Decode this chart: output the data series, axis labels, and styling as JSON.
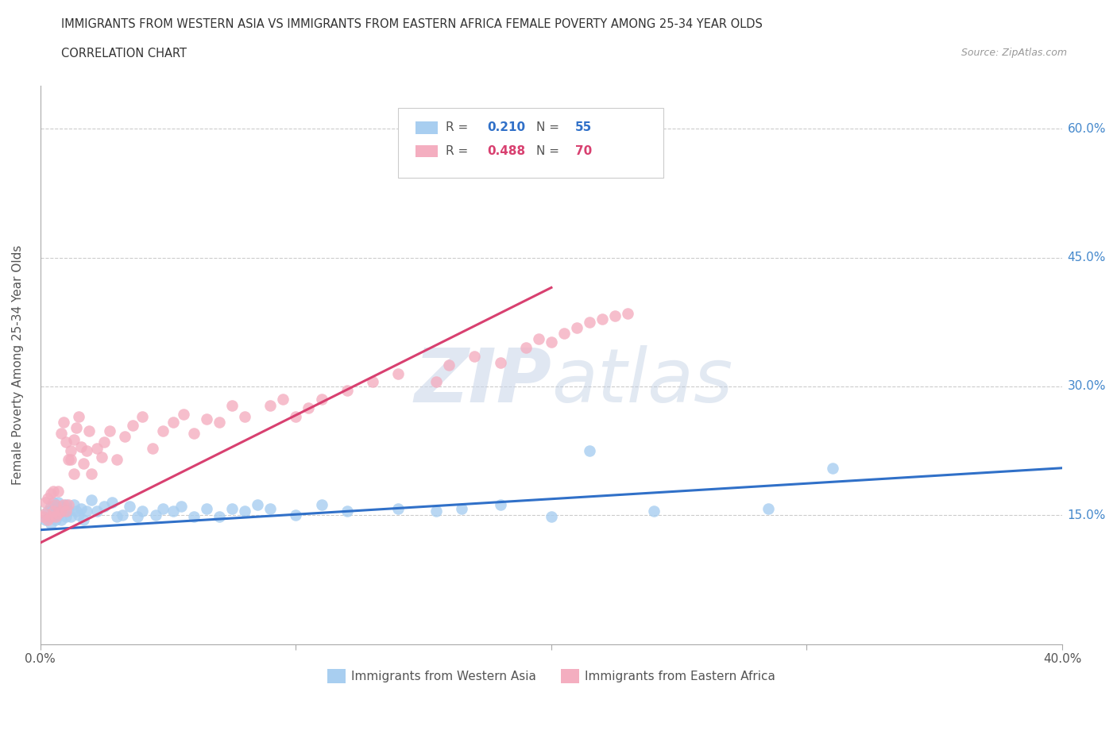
{
  "title_line1": "IMMIGRANTS FROM WESTERN ASIA VS IMMIGRANTS FROM EASTERN AFRICA FEMALE POVERTY AMONG 25-34 YEAR OLDS",
  "title_line2": "CORRELATION CHART",
  "source_text": "Source: ZipAtlas.com",
  "ylabel": "Female Poverty Among 25-34 Year Olds",
  "xlim": [
    0.0,
    0.4
  ],
  "ylim": [
    0.0,
    0.65
  ],
  "xtick_vals": [
    0.0,
    0.1,
    0.2,
    0.3,
    0.4
  ],
  "xtick_labels": [
    "0.0%",
    "",
    "",
    "",
    "40.0%"
  ],
  "ytick_vals": [
    0.0,
    0.15,
    0.3,
    0.45,
    0.6
  ],
  "ytick_labels": [
    "",
    "15.0%",
    "30.0%",
    "45.0%",
    "60.0%"
  ],
  "hgrid_vals": [
    0.15,
    0.3,
    0.45,
    0.6
  ],
  "blue_R": 0.21,
  "blue_N": 55,
  "pink_R": 0.488,
  "pink_N": 70,
  "blue_color": "#a8cef0",
  "pink_color": "#f4aec0",
  "blue_line_color": "#3070c8",
  "pink_line_color": "#d84070",
  "watermark_zip": "ZIP",
  "watermark_atlas": "atlas",
  "legend_label_blue": "Immigrants from Western Asia",
  "legend_label_pink": "Immigrants from Eastern Africa",
  "blue_scatter_x": [
    0.002,
    0.003,
    0.004,
    0.004,
    0.005,
    0.005,
    0.006,
    0.006,
    0.007,
    0.007,
    0.008,
    0.008,
    0.009,
    0.01,
    0.01,
    0.011,
    0.012,
    0.013,
    0.014,
    0.015,
    0.016,
    0.017,
    0.018,
    0.02,
    0.022,
    0.025,
    0.028,
    0.03,
    0.032,
    0.035,
    0.038,
    0.04,
    0.045,
    0.048,
    0.052,
    0.055,
    0.06,
    0.065,
    0.07,
    0.075,
    0.08,
    0.085,
    0.09,
    0.1,
    0.11,
    0.12,
    0.14,
    0.155,
    0.165,
    0.18,
    0.2,
    0.215,
    0.24,
    0.285,
    0.31
  ],
  "blue_scatter_y": [
    0.145,
    0.155,
    0.14,
    0.16,
    0.15,
    0.165,
    0.145,
    0.16,
    0.15,
    0.165,
    0.145,
    0.16,
    0.155,
    0.148,
    0.162,
    0.155,
    0.148,
    0.162,
    0.155,
    0.15,
    0.158,
    0.145,
    0.155,
    0.168,
    0.155,
    0.16,
    0.165,
    0.148,
    0.15,
    0.16,
    0.148,
    0.155,
    0.15,
    0.158,
    0.155,
    0.16,
    0.148,
    0.158,
    0.148,
    0.158,
    0.155,
    0.162,
    0.158,
    0.15,
    0.162,
    0.155,
    0.158,
    0.155,
    0.158,
    0.162,
    0.148,
    0.225,
    0.155,
    0.158,
    0.205
  ],
  "pink_scatter_x": [
    0.001,
    0.002,
    0.002,
    0.003,
    0.003,
    0.004,
    0.004,
    0.005,
    0.005,
    0.006,
    0.006,
    0.007,
    0.007,
    0.008,
    0.008,
    0.009,
    0.009,
    0.01,
    0.01,
    0.011,
    0.011,
    0.012,
    0.012,
    0.013,
    0.013,
    0.014,
    0.015,
    0.016,
    0.017,
    0.018,
    0.019,
    0.02,
    0.022,
    0.024,
    0.025,
    0.027,
    0.03,
    0.033,
    0.036,
    0.04,
    0.044,
    0.048,
    0.052,
    0.056,
    0.06,
    0.065,
    0.07,
    0.075,
    0.08,
    0.09,
    0.095,
    0.1,
    0.105,
    0.11,
    0.12,
    0.13,
    0.14,
    0.155,
    0.16,
    0.17,
    0.18,
    0.19,
    0.195,
    0.2,
    0.205,
    0.21,
    0.215,
    0.22,
    0.225,
    0.23
  ],
  "pink_scatter_y": [
    0.148,
    0.152,
    0.165,
    0.145,
    0.17,
    0.148,
    0.175,
    0.155,
    0.178,
    0.148,
    0.162,
    0.152,
    0.178,
    0.155,
    0.245,
    0.162,
    0.258,
    0.155,
    0.235,
    0.162,
    0.215,
    0.225,
    0.215,
    0.198,
    0.238,
    0.252,
    0.265,
    0.23,
    0.21,
    0.225,
    0.248,
    0.198,
    0.228,
    0.218,
    0.235,
    0.248,
    0.215,
    0.242,
    0.255,
    0.265,
    0.228,
    0.248,
    0.258,
    0.268,
    0.245,
    0.262,
    0.258,
    0.278,
    0.265,
    0.278,
    0.285,
    0.265,
    0.275,
    0.285,
    0.295,
    0.305,
    0.315,
    0.305,
    0.325,
    0.335,
    0.328,
    0.345,
    0.355,
    0.352,
    0.362,
    0.368,
    0.375,
    0.378,
    0.382,
    0.385
  ],
  "blue_trendline_x": [
    0.0,
    0.4
  ],
  "blue_trendline_y": [
    0.133,
    0.205
  ],
  "pink_trendline_x": [
    0.0,
    0.2
  ],
  "pink_trendline_y": [
    0.118,
    0.415
  ]
}
